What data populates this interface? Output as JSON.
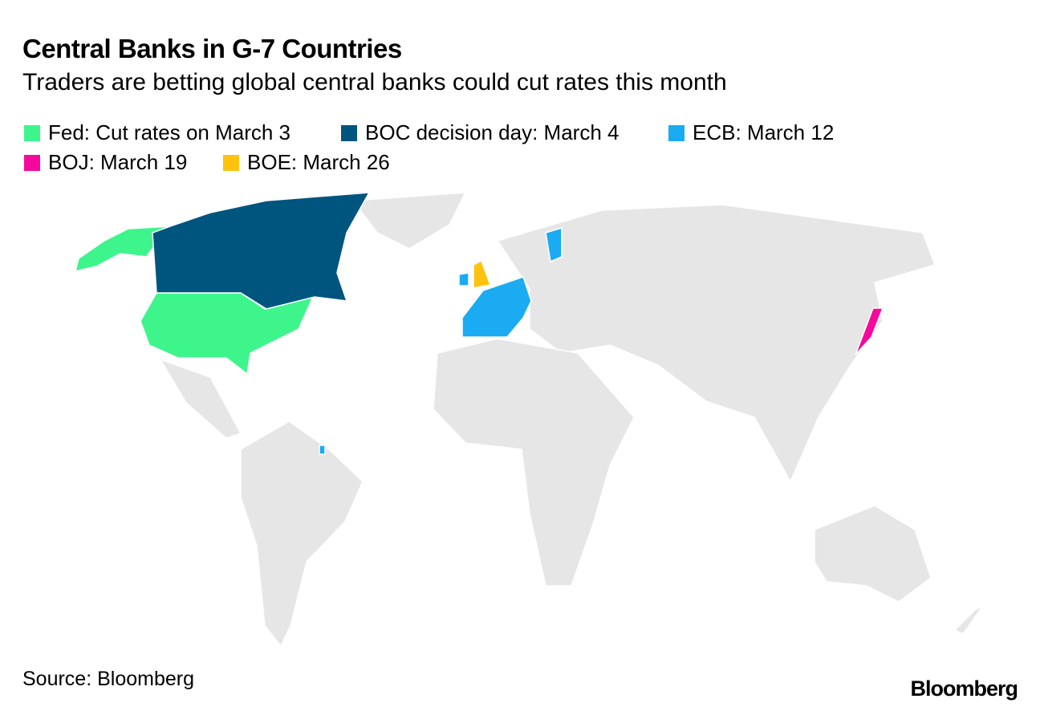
{
  "header": {
    "title": "Central Banks in G-7 Countries",
    "subtitle": "Traders are betting global central banks could cut rates this month"
  },
  "legend": [
    {
      "label": "Fed: Cut rates on March 3",
      "color": "#3ef58c"
    },
    {
      "label": "BOC decision day: March 4",
      "color": "#00557f"
    },
    {
      "label": "ECB: March 12",
      "color": "#1aabf2"
    },
    {
      "label": "BOJ: March 19",
      "color": "#f5089c"
    },
    {
      "label": "BOE: March 26",
      "color": "#ffc20e"
    }
  ],
  "footer": {
    "source": "Source: Bloomberg",
    "logo": "Bloomberg"
  }
}
